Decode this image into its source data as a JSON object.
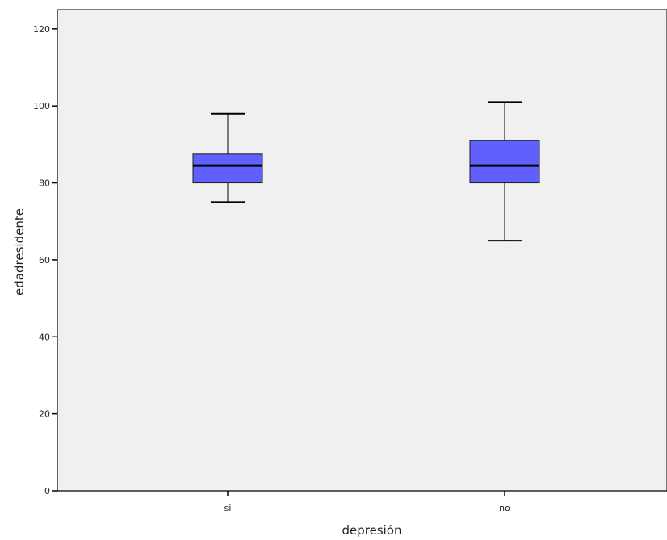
{
  "chart_data": {
    "type": "boxplot",
    "xlabel": "depresión",
    "ylabel": "edadresidente",
    "ylim": [
      0,
      125
    ],
    "yticks": [
      0,
      20,
      40,
      60,
      80,
      100,
      120
    ],
    "grid": false,
    "colors": {
      "plot_background": "#f0f0f0",
      "box_fill": "#6060ff",
      "box_stroke": "#1a1a1a",
      "median": "#000000"
    },
    "categories": [
      "si",
      "no"
    ],
    "boxes": [
      {
        "category": "si",
        "whisker_low": 75,
        "q1": 80,
        "median": 84.5,
        "q3": 87.5,
        "whisker_high": 98
      },
      {
        "category": "no",
        "whisker_low": 65,
        "q1": 80,
        "median": 84.5,
        "q3": 91,
        "whisker_high": 101
      }
    ]
  }
}
